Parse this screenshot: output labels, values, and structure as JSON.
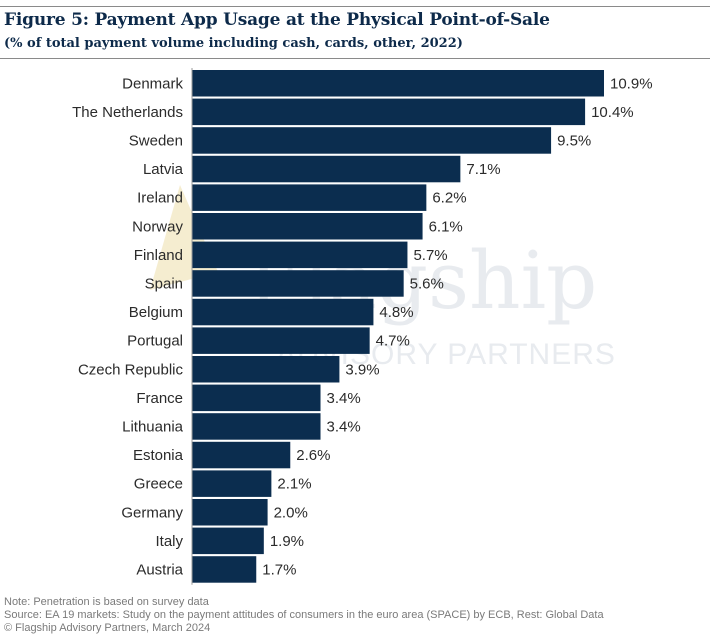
{
  "title": "Figure 5: Payment App Usage at the Physical Point-of-Sale",
  "subtitle": "(% of total payment volume including cash, cards, other, 2022)",
  "watermark": {
    "line1": "Flagship",
    "line2": "ADVISORY PARTNERS"
  },
  "footer": {
    "note": "Note: Penetration is based on survey data",
    "source": "Source: EA 19 markets: Study on the payment attitudes of consumers in the euro area (SPACE) by ECB, Rest: Global Data",
    "copyright": "© Flagship Advisory Partners, March 2024"
  },
  "chart_data": {
    "type": "bar",
    "orientation": "horizontal",
    "categories": [
      "Denmark",
      "The Netherlands",
      "Sweden",
      "Latvia",
      "Ireland",
      "Norway",
      "Finland",
      "Spain",
      "Belgium",
      "Portugal",
      "Czech Republic",
      "France",
      "Lithuania",
      "Estonia",
      "Greece",
      "Germany",
      "Italy",
      "Austria"
    ],
    "values": [
      10.9,
      10.4,
      9.5,
      7.1,
      6.2,
      6.1,
      5.7,
      5.6,
      4.8,
      4.7,
      3.9,
      3.4,
      3.4,
      2.6,
      2.1,
      2.0,
      1.9,
      1.7
    ],
    "value_labels": [
      "10.9%",
      "10.4%",
      "9.5%",
      "7.1%",
      "6.2%",
      "6.1%",
      "5.7%",
      "5.6%",
      "4.8%",
      "4.7%",
      "3.9%",
      "3.4%",
      "3.4%",
      "2.6%",
      "2.1%",
      "2.0%",
      "1.9%",
      "1.7%"
    ],
    "xlim": [
      0,
      10.9
    ],
    "grid": false,
    "legend": "none",
    "bar_color": "#0b2d4f",
    "axis_color": "#9a9a9a"
  }
}
